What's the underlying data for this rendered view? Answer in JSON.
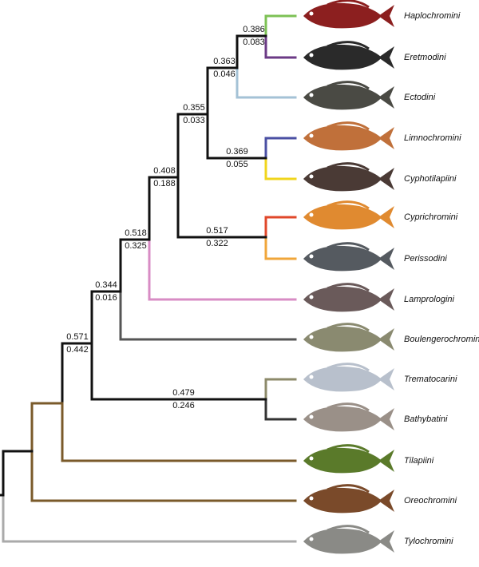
{
  "taxa": [
    "Haplochromini",
    "Eretmodini",
    "Ectodini",
    "Limnochromini",
    "Cyphotilapiini",
    "Cyprichromini",
    "Perissodini",
    "Lamprologini",
    "Boulengerochromini",
    "Trematocarini",
    "Bathybatini",
    "Tilapiini",
    "Oreochromini",
    "Tylochromini"
  ],
  "nodes": [
    {
      "upper": "0.386",
      "lower": "0.083"
    },
    {
      "upper": "0.363",
      "lower": "0.046"
    },
    {
      "upper": "0.355",
      "lower": "0.033"
    },
    {
      "upper": "0.369",
      "lower": "0.055"
    },
    {
      "upper": "0.408",
      "lower": "0.188"
    },
    {
      "upper": "0.517",
      "lower": "0.322"
    },
    {
      "upper": "0.518",
      "lower": "0.325"
    },
    {
      "upper": "0.344",
      "lower": "0.016"
    },
    {
      "upper": "0.479",
      "lower": "0.246"
    },
    {
      "upper": "0.571",
      "lower": "0.442"
    }
  ]
}
